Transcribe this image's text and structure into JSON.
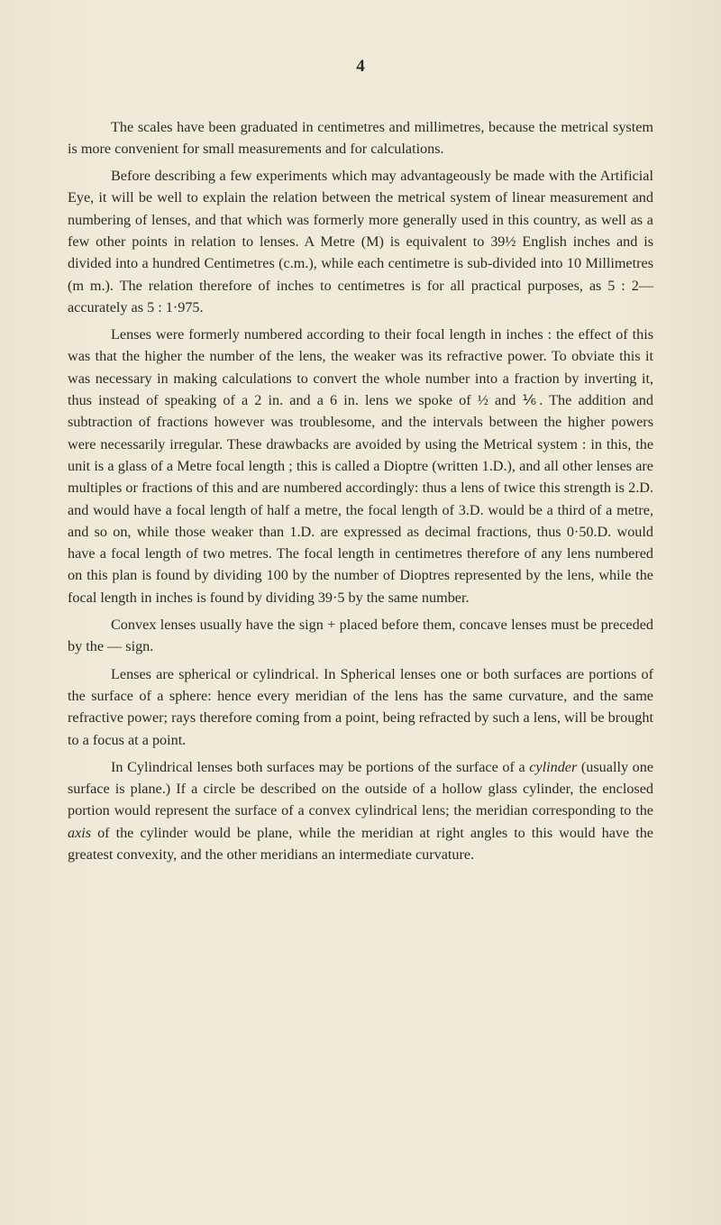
{
  "pageNumber": "4",
  "paragraphs": [
    "The scales have been graduated in centimetres and millimetres, because the metrical system is more convenient for small measurements and for calculations.",
    "Before describing a few experiments which may advantageously be made with the Artificial Eye, it will be well to explain the relation between the metrical system of linear measurement and numbering of lenses, and that which was formerly more generally used in this country, as well as a few other points in relation to lenses. A Metre (M) is equivalent to 39½ English inches and is divided into a hundred Centimetres (c.m.), while each centimetre is sub-divided into 10 Millimetres (m m.). The relation therefore of inches to centimetres is for all practical purposes, as 5 : 2—accurately as 5 : 1·975.",
    "Lenses were formerly numbered according to their focal length in inches : the effect of this was that the higher the number of the lens, the weaker was its refractive power. To obviate this it was necessary in making calculations to convert the whole number into a fraction by inverting it, thus instead of speaking of a 2 in. and a 6 in. lens we spoke of ½ and ⅙. The addition and subtraction of fractions however was troublesome, and the intervals between the higher powers were necessarily irregular. These drawbacks are avoided by using the Metrical system : in this, the unit is a glass of a Metre focal length ; this is called a Dioptre (written 1.D.), and all other lenses are multiples or fractions of this and are numbered accordingly: thus a lens of twice this strength is 2.D. and would have a focal length of half a metre, the focal length of 3.D. would be a third of a metre, and so on, while those weaker than 1.D. are expressed as decimal fractions, thus 0·50.D. would have a focal length of two metres. The focal length in centimetres therefore of any lens numbered on this plan is found by dividing 100 by the number of Dioptres represented by the lens, while the focal length in inches is found by dividing 39·5 by the same number.",
    "Convex lenses usually have the sign + placed before them, concave lenses must be preceded by the — sign.",
    "Lenses are spherical or cylindrical. In Spherical lenses one or both surfaces are portions of the surface of a sphere: hence every meridian of the lens has the same curvature, and the same refractive power; rays therefore coming from a point, being refracted by such a lens, will be brought to a focus at a point."
  ],
  "lastParagraph": {
    "prefix": "In Cylindrical lenses both surfaces may be portions of the surface of a ",
    "italic1": "cylinder",
    "mid1": " (usually one surface is plane.) If a circle be described on the outside of a hollow glass cylinder, the enclosed portion would represent the surface of a convex cylindrical lens; the meridian corresponding to the ",
    "italic2": "axis",
    "suffix": " of the cylinder would be plane, while the meridian at right angles to this would have the greatest convexity, and the other meridians an intermediate curvature."
  }
}
